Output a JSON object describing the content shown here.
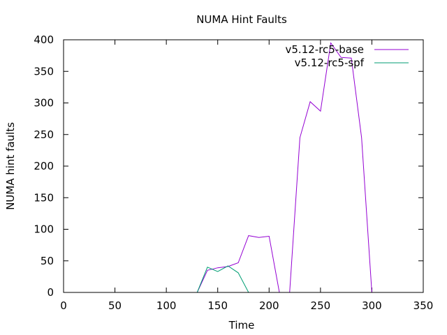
{
  "chart_data": {
    "type": "line",
    "title": "NUMA Hint Faults",
    "xlabel": "Time",
    "ylabel": "NUMA hint faults",
    "xlim": [
      0,
      350
    ],
    "ylim": [
      0,
      400
    ],
    "xticks": [
      "0",
      "50",
      "100",
      "150",
      "200",
      "250",
      "300",
      "350"
    ],
    "yticks": [
      "0",
      "50",
      "100",
      "150",
      "200",
      "250",
      "300",
      "350",
      "400"
    ],
    "grid": false,
    "legend_position": "top-right",
    "series": [
      {
        "name": "v5.12-rc5-base",
        "color": "#9400d3",
        "x": [
          130,
          140,
          150,
          160,
          170,
          180,
          190,
          200,
          210,
          220,
          230,
          240,
          250,
          260,
          270,
          280,
          290,
          300
        ],
        "y": [
          0,
          35,
          39,
          41,
          47,
          90,
          87,
          89,
          0,
          0,
          245,
          302,
          287,
          395,
          372,
          371,
          245,
          0
        ]
      },
      {
        "name": "v5.12-rc5-spf",
        "color": "#009e73",
        "x": [
          130,
          140,
          150,
          160,
          170,
          180
        ],
        "y": [
          0,
          40,
          33,
          42,
          31,
          0
        ]
      }
    ]
  }
}
